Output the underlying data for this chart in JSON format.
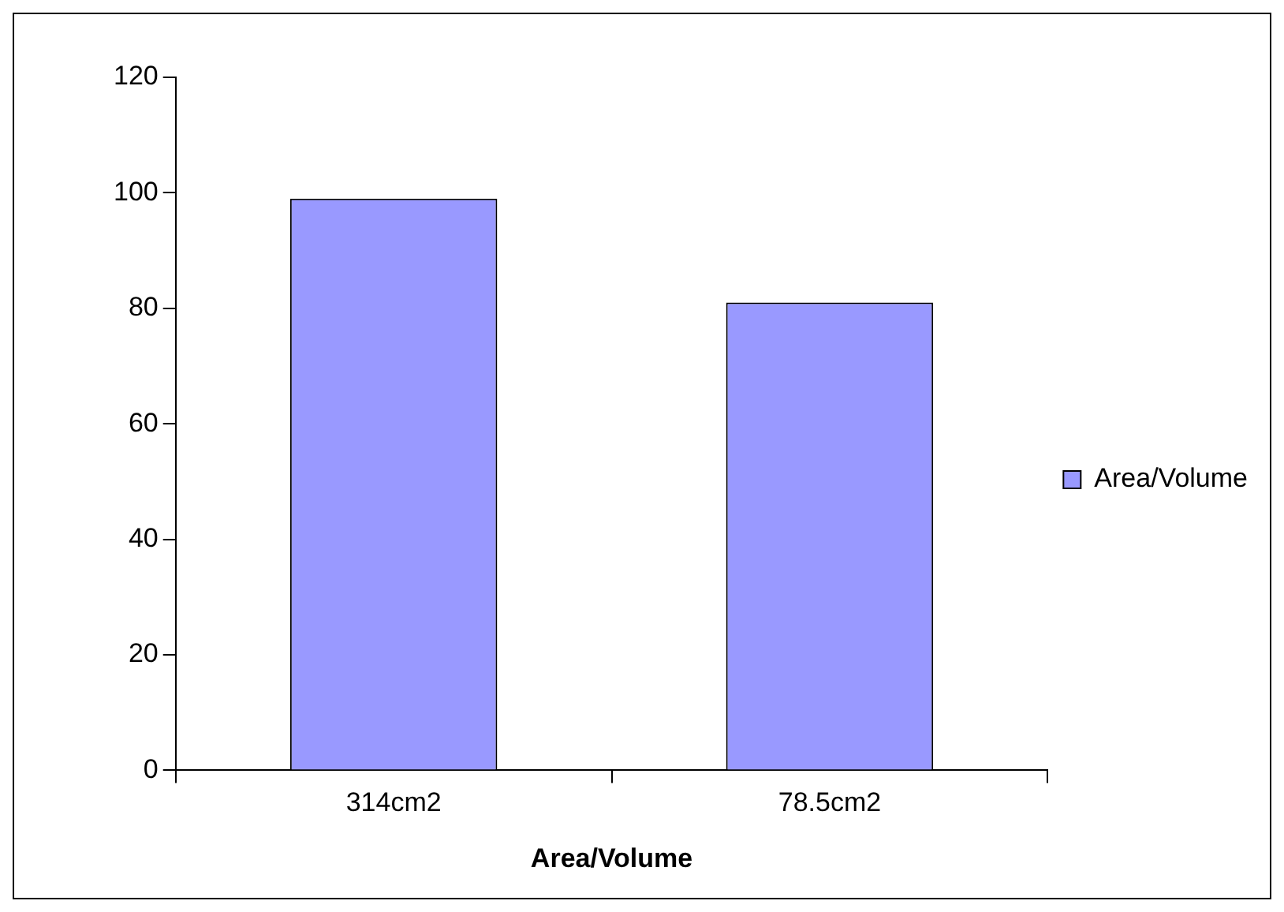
{
  "chart_data": {
    "type": "bar",
    "xlabel": "Area/Volume",
    "categories": [
      "314cm2",
      "78.5cm2"
    ],
    "series": [
      {
        "name": "Area/Volume",
        "color": "#9999ff",
        "values": [
          99,
          81
        ]
      }
    ],
    "ylim": [
      0,
      120
    ],
    "yticks": [
      0,
      20,
      40,
      60,
      80,
      100,
      120
    ],
    "grid": false,
    "legend": "right"
  }
}
